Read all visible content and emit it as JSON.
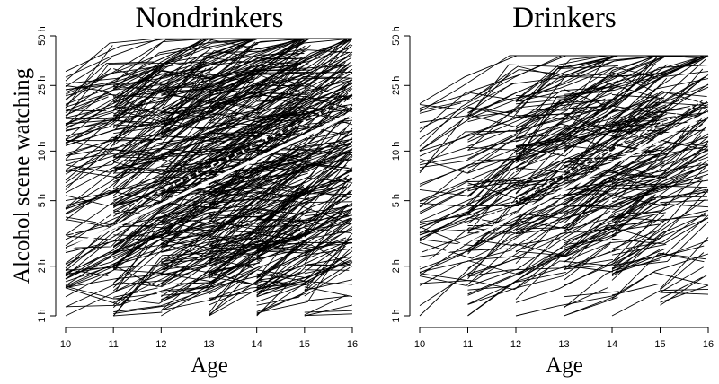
{
  "chart_data": [
    {
      "type": "line",
      "title": "Nondrinkers",
      "xlabel": "Age",
      "ylabel": "Alcohol scene watching",
      "x_ticks": [
        10,
        11,
        12,
        13,
        14,
        15,
        16
      ],
      "y_ticks": [
        "1 h",
        "2 h",
        "5 h",
        "10 h",
        "25 h",
        "50 h"
      ],
      "y_tick_values": [
        1,
        2,
        5,
        10,
        25,
        50
      ],
      "y_scale": "log",
      "xlim": [
        10,
        16
      ],
      "ylim": [
        1,
        50
      ],
      "grid": false,
      "series": [
        {
          "name": "Individual trajectories",
          "style": "thin black lines",
          "note": "hundreds of overlapping per-person spaghetti lines spanning 1h-48h"
        },
        {
          "name": "Mean trend (solid white)",
          "x": [
            10,
            16
          ],
          "values": [
            2.5,
            17
          ]
        },
        {
          "name": "Mean trend (dotted white)",
          "x": [
            10,
            16
          ],
          "values": [
            3.0,
            21
          ]
        }
      ]
    },
    {
      "type": "line",
      "title": "Drinkers",
      "xlabel": "Age",
      "ylabel": "",
      "x_ticks": [
        10,
        11,
        12,
        13,
        14,
        15,
        16
      ],
      "y_ticks": [
        "1 h",
        "2 h",
        "5 h",
        "10 h",
        "25 h",
        "50 h"
      ],
      "y_tick_values": [
        1,
        2,
        5,
        10,
        25,
        50
      ],
      "y_scale": "log",
      "xlim": [
        10,
        16
      ],
      "ylim": [
        1,
        50
      ],
      "grid": false,
      "series": [
        {
          "name": "Individual trajectories",
          "style": "thin black lines",
          "note": "many overlapping per-person spaghetti lines spanning 1h-38h"
        },
        {
          "name": "Mean trend (solid white)",
          "x": [
            10,
            16
          ],
          "values": [
            2.0,
            17
          ]
        },
        {
          "name": "Mean trend (dotted white)",
          "x": [
            10,
            16
          ],
          "values": [
            2.4,
            21
          ]
        }
      ]
    }
  ],
  "panels": {
    "left": {
      "title": "Nondrinkers",
      "xlabel": "Age",
      "ylabel": "Alcohol scene watching"
    },
    "right": {
      "title": "Drinkers",
      "xlabel": "Age"
    }
  },
  "colors": {
    "trajectory": "#000000",
    "trend": "#ffffff",
    "background": "#ffffff"
  }
}
